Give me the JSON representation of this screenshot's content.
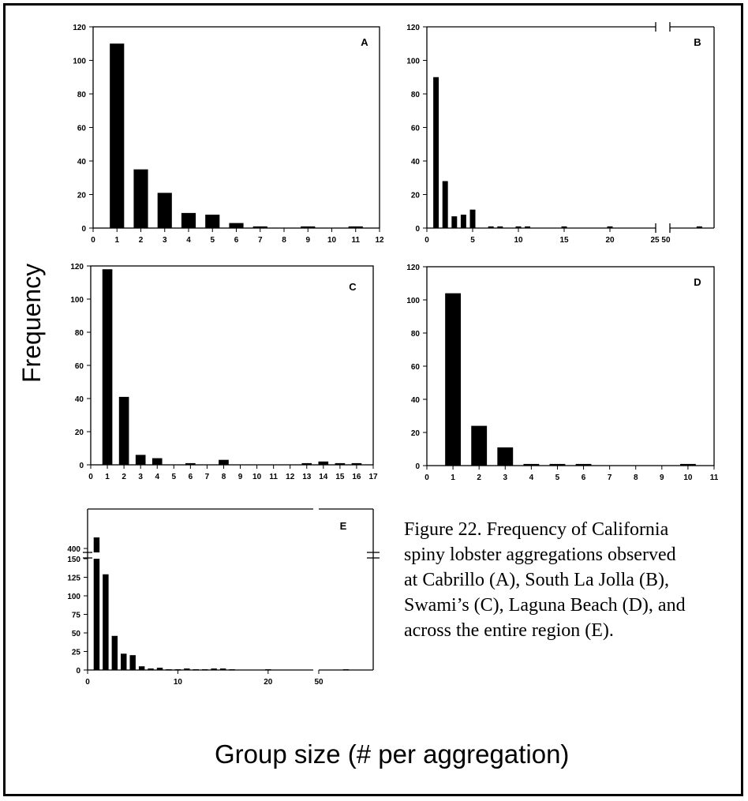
{
  "figure": {
    "y_axis_label": "Frequency",
    "x_axis_label": "Group size (# per aggregation)",
    "caption": "Figure 22. Frequency of California spiny lobster aggregations observed at Cabrillo (A), South La Jolla (B), Swami’s (C), Laguna Beach (D), and across the entire region (E)."
  },
  "chart_data": [
    {
      "panel": "A",
      "type": "bar",
      "xlim": [
        0,
        12
      ],
      "ylim": [
        0,
        120
      ],
      "x_ticks": [
        0,
        1,
        2,
        3,
        4,
        5,
        6,
        7,
        8,
        9,
        10,
        11,
        12
      ],
      "y_ticks": [
        0,
        20,
        40,
        60,
        80,
        100,
        120
      ],
      "x": [
        1,
        2,
        3,
        4,
        5,
        6,
        7,
        9,
        11
      ],
      "values": [
        110,
        35,
        21,
        9,
        8,
        3,
        1,
        1,
        1
      ]
    },
    {
      "panel": "B",
      "type": "bar",
      "xlim": [
        0,
        25
      ],
      "ylim": [
        0,
        120
      ],
      "axis_break": "between 25 and 50",
      "x_ticks": [
        0,
        5,
        10,
        15,
        20,
        "25 50"
      ],
      "y_ticks": [
        0,
        20,
        40,
        60,
        80,
        100,
        120
      ],
      "x": [
        1,
        2,
        3,
        4,
        5,
        7,
        8,
        10,
        11,
        15,
        20,
        60
      ],
      "values": [
        90,
        28,
        7,
        8,
        11,
        1,
        1,
        1,
        1,
        1,
        1,
        1
      ]
    },
    {
      "panel": "C",
      "type": "bar",
      "xlim": [
        0,
        17
      ],
      "ylim": [
        0,
        120
      ],
      "x_ticks": [
        0,
        1,
        2,
        3,
        4,
        5,
        6,
        7,
        8,
        9,
        10,
        11,
        12,
        13,
        14,
        15,
        16,
        17
      ],
      "y_ticks": [
        0,
        20,
        40,
        60,
        80,
        100,
        120
      ],
      "x": [
        1,
        2,
        3,
        4,
        6,
        8,
        13,
        14,
        15,
        16
      ],
      "values": [
        118,
        41,
        6,
        4,
        1,
        3,
        1,
        2,
        1,
        1
      ]
    },
    {
      "panel": "D",
      "type": "bar",
      "xlim": [
        0,
        11
      ],
      "ylim": [
        0,
        120
      ],
      "x_ticks": [
        0,
        1,
        2,
        3,
        4,
        5,
        6,
        7,
        8,
        9,
        10,
        11
      ],
      "y_ticks": [
        0,
        20,
        40,
        60,
        80,
        100,
        120
      ],
      "x": [
        1,
        2,
        3,
        4,
        5,
        6,
        10
      ],
      "values": [
        104,
        24,
        11,
        1,
        1,
        1,
        1
      ]
    },
    {
      "panel": "E",
      "type": "bar",
      "xlim": [
        0,
        25
      ],
      "ylim": [
        0,
        150
      ],
      "axis_break": "y between 150 and 400; x between 25 and 50",
      "x_ticks": [
        0,
        10,
        20,
        50
      ],
      "y_ticks": [
        0,
        25,
        50,
        75,
        100,
        125,
        150,
        400
      ],
      "x": [
        1,
        2,
        3,
        4,
        5,
        6,
        7,
        8,
        9,
        10,
        11,
        12,
        13,
        14,
        15,
        16,
        20,
        55
      ],
      "values": [
        420,
        129,
        46,
        22,
        20,
        5,
        2,
        3,
        1,
        1,
        2,
        1,
        1,
        2,
        2,
        1,
        1,
        1
      ]
    }
  ]
}
